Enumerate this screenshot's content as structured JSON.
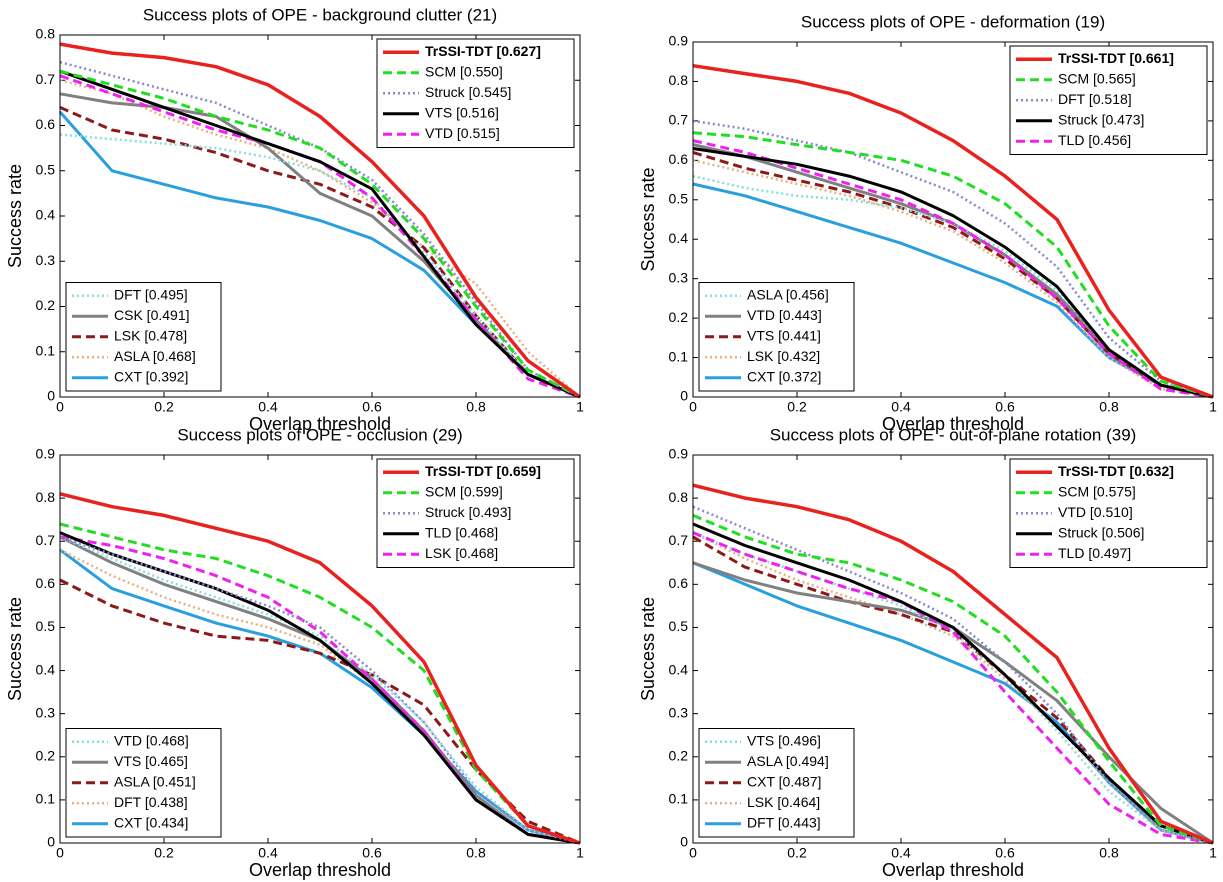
{
  "chart_data": [
    {
      "type": "line",
      "title": "Success plots of OPE - background clutter (21)",
      "x_label": "Overlap threshold",
      "y_label": "Success rate",
      "xlim": [
        0,
        1
      ],
      "ylim": [
        0,
        0.8
      ],
      "xticks": [
        0,
        0.2,
        0.4,
        0.6,
        0.8,
        1
      ],
      "yticks": [
        0,
        0.1,
        0.2,
        0.3,
        0.4,
        0.5,
        0.6,
        0.7,
        0.8
      ],
      "x": [
        0,
        0.1,
        0.2,
        0.3,
        0.4,
        0.5,
        0.6,
        0.7,
        0.8,
        0.9,
        1
      ],
      "series": [
        {
          "name": "TrSSI-TDT [0.627]",
          "color": "#e8221f",
          "style": "solid",
          "legend": "upper right",
          "values": [
            0.78,
            0.76,
            0.75,
            0.73,
            0.69,
            0.62,
            0.52,
            0.4,
            0.22,
            0.08,
            0
          ]
        },
        {
          "name": "SCM [0.550]",
          "color": "#22dd22",
          "style": "dashed",
          "legend": "upper right",
          "values": [
            0.72,
            0.69,
            0.66,
            0.62,
            0.59,
            0.55,
            0.47,
            0.35,
            0.2,
            0.06,
            0
          ]
        },
        {
          "name": "Struck [0.545]",
          "color": "#8888cc",
          "style": "dotted",
          "legend": "upper right",
          "values": [
            0.74,
            0.71,
            0.68,
            0.65,
            0.6,
            0.55,
            0.48,
            0.36,
            0.21,
            0.06,
            0
          ]
        },
        {
          "name": "VTS [0.516]",
          "color": "#000000",
          "style": "solid",
          "legend": "upper right",
          "values": [
            0.72,
            0.68,
            0.64,
            0.6,
            0.56,
            0.52,
            0.46,
            0.31,
            0.16,
            0.05,
            0
          ]
        },
        {
          "name": "VTD [0.515]",
          "color": "#ee22ee",
          "style": "dashed",
          "legend": "upper right",
          "values": [
            0.71,
            0.67,
            0.63,
            0.59,
            0.56,
            0.52,
            0.44,
            0.31,
            0.17,
            0.04,
            0
          ]
        },
        {
          "name": "DFT [0.495]",
          "color": "#88dddd",
          "style": "dotted",
          "legend": "lower left",
          "values": [
            0.58,
            0.57,
            0.56,
            0.55,
            0.53,
            0.5,
            0.44,
            0.32,
            0.18,
            0.05,
            0
          ]
        },
        {
          "name": "CSK [0.491]",
          "color": "#808080",
          "style": "solid",
          "legend": "lower left",
          "values": [
            0.67,
            0.65,
            0.64,
            0.62,
            0.55,
            0.45,
            0.4,
            0.3,
            0.17,
            0.05,
            0
          ]
        },
        {
          "name": "LSK [0.478]",
          "color": "#8b1a1a",
          "style": "dashed",
          "legend": "lower left",
          "values": [
            0.64,
            0.59,
            0.57,
            0.54,
            0.5,
            0.47,
            0.42,
            0.33,
            0.18,
            0.05,
            0
          ]
        },
        {
          "name": "ASLA [0.468]",
          "color": "#e8b080",
          "style": "dotted",
          "legend": "lower left",
          "values": [
            0.7,
            0.67,
            0.62,
            0.58,
            0.55,
            0.5,
            0.43,
            0.33,
            0.25,
            0.1,
            0
          ]
        },
        {
          "name": "CXT [0.392]",
          "color": "#2a9fdf",
          "style": "solid",
          "legend": "lower left",
          "values": [
            0.63,
            0.5,
            0.47,
            0.44,
            0.42,
            0.39,
            0.35,
            0.28,
            0.16,
            0.05,
            0
          ]
        }
      ]
    },
    {
      "type": "line",
      "title": "Success plots of OPE - deformation (19)",
      "x_label": "Overlap threshold",
      "y_label": "Success rate",
      "xlim": [
        0,
        1
      ],
      "ylim": [
        0,
        0.9
      ],
      "xticks": [
        0,
        0.2,
        0.4,
        0.6,
        0.8,
        1
      ],
      "yticks": [
        0,
        0.1,
        0.2,
        0.3,
        0.4,
        0.5,
        0.6,
        0.7,
        0.8,
        0.9
      ],
      "x": [
        0,
        0.1,
        0.2,
        0.3,
        0.4,
        0.5,
        0.6,
        0.7,
        0.8,
        0.9,
        1
      ],
      "series": [
        {
          "name": "TrSSI-TDT [0.661]",
          "color": "#e8221f",
          "style": "solid",
          "legend": "upper right",
          "values": [
            0.84,
            0.82,
            0.8,
            0.77,
            0.72,
            0.65,
            0.56,
            0.45,
            0.22,
            0.05,
            0
          ]
        },
        {
          "name": "SCM [0.565]",
          "color": "#22dd22",
          "style": "dashed",
          "legend": "upper right",
          "values": [
            0.67,
            0.66,
            0.64,
            0.62,
            0.6,
            0.56,
            0.49,
            0.38,
            0.18,
            0.04,
            0
          ]
        },
        {
          "name": "DFT [0.518]",
          "color": "#8888cc",
          "style": "dotted",
          "legend": "upper right",
          "values": [
            0.7,
            0.68,
            0.65,
            0.62,
            0.57,
            0.52,
            0.44,
            0.33,
            0.15,
            0.04,
            0
          ]
        },
        {
          "name": "Struck [0.473]",
          "color": "#000000",
          "style": "solid",
          "legend": "upper right",
          "values": [
            0.63,
            0.61,
            0.59,
            0.56,
            0.52,
            0.46,
            0.38,
            0.28,
            0.12,
            0.03,
            0
          ]
        },
        {
          "name": "TLD [0.456]",
          "color": "#ee22ee",
          "style": "dashed",
          "legend": "upper right",
          "values": [
            0.65,
            0.62,
            0.58,
            0.54,
            0.5,
            0.44,
            0.36,
            0.25,
            0.11,
            0.02,
            0
          ]
        },
        {
          "name": "ASLA [0.456]",
          "color": "#88dddd",
          "style": "dotted",
          "legend": "lower left",
          "values": [
            0.56,
            0.53,
            0.51,
            0.5,
            0.48,
            0.44,
            0.37,
            0.27,
            0.12,
            0.03,
            0
          ]
        },
        {
          "name": "VTD [0.443]",
          "color": "#808080",
          "style": "solid",
          "legend": "lower left",
          "values": [
            0.64,
            0.61,
            0.57,
            0.53,
            0.49,
            0.44,
            0.36,
            0.26,
            0.12,
            0.03,
            0
          ]
        },
        {
          "name": "VTS [0.441]",
          "color": "#8b1a1a",
          "style": "dashed",
          "legend": "lower left",
          "values": [
            0.62,
            0.58,
            0.55,
            0.52,
            0.48,
            0.43,
            0.35,
            0.25,
            0.11,
            0.03,
            0
          ]
        },
        {
          "name": "LSK [0.432]",
          "color": "#e8b080",
          "style": "dotted",
          "legend": "lower left",
          "values": [
            0.6,
            0.57,
            0.54,
            0.51,
            0.47,
            0.42,
            0.34,
            0.24,
            0.1,
            0.02,
            0
          ]
        },
        {
          "name": "CXT [0.372]",
          "color": "#2a9fdf",
          "style": "solid",
          "legend": "lower left",
          "values": [
            0.54,
            0.51,
            0.47,
            0.43,
            0.39,
            0.34,
            0.29,
            0.23,
            0.1,
            0.03,
            0
          ]
        }
      ]
    },
    {
      "type": "line",
      "title": "Success plots of OPE - occlusion (29)",
      "x_label": "Overlap threshold",
      "y_label": "Success rate",
      "xlim": [
        0,
        1
      ],
      "ylim": [
        0,
        0.9
      ],
      "xticks": [
        0,
        0.2,
        0.4,
        0.6,
        0.8,
        1
      ],
      "yticks": [
        0,
        0.1,
        0.2,
        0.3,
        0.4,
        0.5,
        0.6,
        0.7,
        0.8,
        0.9
      ],
      "x": [
        0,
        0.1,
        0.2,
        0.3,
        0.4,
        0.5,
        0.6,
        0.7,
        0.8,
        0.9,
        1
      ],
      "series": [
        {
          "name": "TrSSI-TDT [0.659]",
          "color": "#e8221f",
          "style": "solid",
          "legend": "upper right",
          "values": [
            0.81,
            0.78,
            0.76,
            0.73,
            0.7,
            0.65,
            0.55,
            0.42,
            0.18,
            0.04,
            0
          ]
        },
        {
          "name": "SCM [0.599]",
          "color": "#22dd22",
          "style": "dashed",
          "legend": "upper right",
          "values": [
            0.74,
            0.71,
            0.68,
            0.66,
            0.62,
            0.57,
            0.5,
            0.4,
            0.17,
            0.04,
            0
          ]
        },
        {
          "name": "Struck [0.493]",
          "color": "#8888cc",
          "style": "dotted",
          "legend": "upper right",
          "values": [
            0.71,
            0.67,
            0.63,
            0.59,
            0.55,
            0.5,
            0.4,
            0.28,
            0.12,
            0.03,
            0
          ]
        },
        {
          "name": "TLD [0.468]",
          "color": "#000000",
          "style": "solid",
          "legend": "upper right",
          "values": [
            0.72,
            0.67,
            0.63,
            0.59,
            0.54,
            0.47,
            0.37,
            0.25,
            0.1,
            0.02,
            0
          ]
        },
        {
          "name": "LSK [0.468]",
          "color": "#ee22ee",
          "style": "dashed",
          "legend": "upper right",
          "values": [
            0.71,
            0.69,
            0.66,
            0.62,
            0.57,
            0.49,
            0.38,
            0.26,
            0.1,
            0.02,
            0
          ]
        },
        {
          "name": "VTD [0.468]",
          "color": "#88dddd",
          "style": "dotted",
          "legend": "lower left",
          "values": [
            0.71,
            0.66,
            0.61,
            0.57,
            0.53,
            0.48,
            0.39,
            0.28,
            0.13,
            0.03,
            0
          ]
        },
        {
          "name": "VTS [0.465]",
          "color": "#808080",
          "style": "solid",
          "legend": "lower left",
          "values": [
            0.71,
            0.65,
            0.6,
            0.56,
            0.52,
            0.47,
            0.38,
            0.26,
            0.11,
            0.02,
            0
          ]
        },
        {
          "name": "ASLA [0.451]",
          "color": "#8b1a1a",
          "style": "dashed",
          "legend": "lower left",
          "values": [
            0.61,
            0.55,
            0.51,
            0.48,
            0.47,
            0.44,
            0.39,
            0.32,
            0.17,
            0.05,
            0
          ]
        },
        {
          "name": "DFT [0.438]",
          "color": "#e8b080",
          "style": "dotted",
          "legend": "lower left",
          "values": [
            0.68,
            0.62,
            0.57,
            0.53,
            0.5,
            0.46,
            0.37,
            0.25,
            0.11,
            0.02,
            0
          ]
        },
        {
          "name": "CXT [0.434]",
          "color": "#2a9fdf",
          "style": "solid",
          "legend": "lower left",
          "values": [
            0.68,
            0.59,
            0.55,
            0.51,
            0.48,
            0.44,
            0.36,
            0.25,
            0.12,
            0.03,
            0
          ]
        }
      ]
    },
    {
      "type": "line",
      "title": "Success plots of OPE - out-of-plane rotation (39)",
      "x_label": "Overlap threshold",
      "y_label": "Success rate",
      "xlim": [
        0,
        1
      ],
      "ylim": [
        0,
        0.9
      ],
      "xticks": [
        0,
        0.2,
        0.4,
        0.6,
        0.8,
        1
      ],
      "yticks": [
        0,
        0.1,
        0.2,
        0.3,
        0.4,
        0.5,
        0.6,
        0.7,
        0.8,
        0.9
      ],
      "x": [
        0,
        0.1,
        0.2,
        0.3,
        0.4,
        0.5,
        0.6,
        0.7,
        0.8,
        0.9,
        1
      ],
      "series": [
        {
          "name": "TrSSI-TDT [0.632]",
          "color": "#e8221f",
          "style": "solid",
          "legend": "upper right",
          "values": [
            0.83,
            0.8,
            0.78,
            0.75,
            0.7,
            0.63,
            0.53,
            0.43,
            0.22,
            0.05,
            0
          ]
        },
        {
          "name": "SCM [0.575]",
          "color": "#22dd22",
          "style": "dashed",
          "legend": "upper right",
          "values": [
            0.76,
            0.71,
            0.67,
            0.65,
            0.61,
            0.56,
            0.48,
            0.35,
            0.19,
            0.04,
            0
          ]
        },
        {
          "name": "VTD [0.510]",
          "color": "#8888cc",
          "style": "dotted",
          "legend": "upper right",
          "values": [
            0.78,
            0.73,
            0.68,
            0.63,
            0.58,
            0.52,
            0.42,
            0.3,
            0.14,
            0.03,
            0
          ]
        },
        {
          "name": "Struck [0.506]",
          "color": "#000000",
          "style": "solid",
          "legend": "upper right",
          "values": [
            0.74,
            0.69,
            0.65,
            0.61,
            0.56,
            0.5,
            0.39,
            0.27,
            0.15,
            0.04,
            0
          ]
        },
        {
          "name": "TLD [0.497]",
          "color": "#ee22ee",
          "style": "dashed",
          "legend": "upper right",
          "values": [
            0.72,
            0.67,
            0.63,
            0.59,
            0.56,
            0.49,
            0.35,
            0.22,
            0.09,
            0.02,
            0
          ]
        },
        {
          "name": "VTS [0.496]",
          "color": "#88dddd",
          "style": "dotted",
          "legend": "lower left",
          "values": [
            0.72,
            0.67,
            0.63,
            0.59,
            0.55,
            0.49,
            0.39,
            0.26,
            0.12,
            0.03,
            0
          ]
        },
        {
          "name": "ASLA [0.494]",
          "color": "#808080",
          "style": "solid",
          "legend": "lower left",
          "values": [
            0.65,
            0.61,
            0.58,
            0.56,
            0.54,
            0.5,
            0.42,
            0.33,
            0.2,
            0.08,
            0
          ]
        },
        {
          "name": "CXT [0.487]",
          "color": "#8b1a1a",
          "style": "dashed",
          "legend": "lower left",
          "values": [
            0.71,
            0.64,
            0.6,
            0.56,
            0.53,
            0.49,
            0.39,
            0.29,
            0.15,
            0.04,
            0
          ]
        },
        {
          "name": "LSK [0.464]",
          "color": "#e8b080",
          "style": "dotted",
          "legend": "lower left",
          "values": [
            0.72,
            0.66,
            0.61,
            0.57,
            0.53,
            0.48,
            0.38,
            0.27,
            0.14,
            0.03,
            0
          ]
        },
        {
          "name": "DFT [0.443]",
          "color": "#2a9fdf",
          "style": "solid",
          "legend": "lower left",
          "values": [
            0.65,
            0.6,
            0.55,
            0.51,
            0.47,
            0.42,
            0.37,
            0.28,
            0.14,
            0.03,
            0
          ]
        }
      ]
    }
  ]
}
